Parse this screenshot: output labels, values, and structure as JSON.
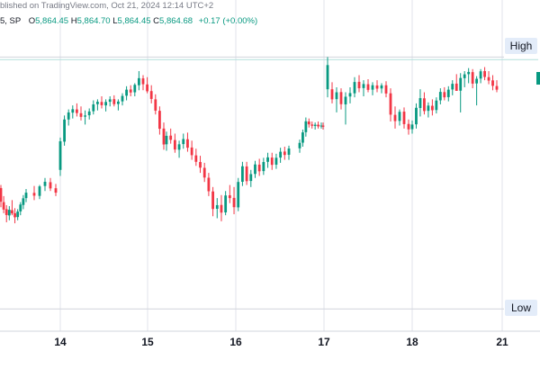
{
  "header": {
    "published": "blished on TradingView.com, Oct 21, 2024 12:14 UTC+2",
    "symbol": "5, SP",
    "open_label": "O",
    "open": "5,864.45",
    "high_label": "H",
    "high": "5,864.70",
    "low_label": "L",
    "low": "5,864.45",
    "close_label": "C",
    "close": "5,864.68",
    "change": "+0.17 (+0.00%)"
  },
  "levels": {
    "high_label": "High",
    "low_label": "Low"
  },
  "colors": {
    "up": "#089981",
    "down": "#f23645",
    "grid": "#e0e3eb",
    "level_line": "#b2dfdb",
    "text": "#131722"
  },
  "chart_data": {
    "type": "candlestick",
    "x_tick_labels": [
      "14",
      "15",
      "16",
      "17",
      "18",
      "21"
    ],
    "ylim": [
      5738,
      5880
    ],
    "levels": {
      "high": 5866,
      "low": 5741,
      "current": 5864.7
    },
    "candles": [
      [
        5801.0,
        5802.5,
        5791.5,
        5794.2
      ],
      [
        5794.0,
        5797.0,
        5788.5,
        5790.3
      ],
      [
        5790.5,
        5792.5,
        5784.0,
        5787.6
      ],
      [
        5787.4,
        5792.0,
        5785.0,
        5790.2
      ],
      [
        5790.0,
        5795.0,
        5787.5,
        5788.4
      ],
      [
        5788.5,
        5791.0,
        5783.5,
        5786.5
      ],
      [
        5786.6,
        5790.5,
        5785.0,
        5789.3
      ],
      [
        5789.4,
        5794.0,
        5787.5,
        5792.8
      ],
      [
        5792.6,
        5797.5,
        5790.5,
        5795.9
      ],
      [
        5796.0,
        5800.5,
        5794.0,
        5798.7
      ],
      [
        5798.6,
        5802.0,
        5795.0,
        5797.2
      ],
      [
        5797.1,
        5802.5,
        5795.5,
        5801.8
      ],
      [
        5802.0,
        5806.0,
        5799.5,
        5804.1
      ],
      [
        5803.9,
        5806.0,
        5799.5,
        5800.8
      ],
      [
        5800.9,
        5803.0,
        5797.0,
        5798.7
      ],
      [
        5810.0,
        5826.0,
        5807.0,
        5824.2
      ],
      [
        5824.0,
        5837.0,
        5822.0,
        5835.0
      ],
      [
        5835.0,
        5840.0,
        5832.0,
        5838.5
      ],
      [
        5838.4,
        5842.0,
        5835.5,
        5840.1
      ],
      [
        5840.0,
        5843.0,
        5836.5,
        5838.2
      ],
      [
        5838.1,
        5841.5,
        5834.5,
        5836.3
      ],
      [
        5836.4,
        5839.5,
        5832.5,
        5837.0
      ],
      [
        5837.1,
        5840.5,
        5835.0,
        5839.0
      ],
      [
        5839.1,
        5844.5,
        5837.5,
        5842.5
      ],
      [
        5842.6,
        5845.0,
        5839.5,
        5843.8
      ],
      [
        5843.7,
        5846.5,
        5840.5,
        5842.1
      ],
      [
        5842.0,
        5845.0,
        5839.0,
        5843.7
      ],
      [
        5843.8,
        5846.5,
        5841.5,
        5845.0
      ],
      [
        5845.1,
        5847.0,
        5841.5,
        5842.6
      ],
      [
        5842.7,
        5845.0,
        5839.5,
        5843.9
      ],
      [
        5844.0,
        5848.0,
        5842.0,
        5846.7
      ],
      [
        5846.8,
        5851.5,
        5844.5,
        5849.8
      ],
      [
        5849.9,
        5852.0,
        5846.5,
        5848.4
      ],
      [
        5848.5,
        5853.0,
        5846.5,
        5852.2
      ],
      [
        5852.0,
        5859.0,
        5849.5,
        5855.5
      ],
      [
        5855.4,
        5857.0,
        5849.5,
        5852.5
      ],
      [
        5852.4,
        5856.0,
        5848.0,
        5849.0
      ],
      [
        5849.1,
        5852.0,
        5843.0,
        5845.2
      ],
      [
        5845.0,
        5847.5,
        5837.5,
        5839.4
      ],
      [
        5839.3,
        5841.5,
        5827.5,
        5830.4
      ],
      [
        5830.5,
        5833.5,
        5820.0,
        5822.6
      ],
      [
        5822.7,
        5829.0,
        5819.5,
        5826.9
      ],
      [
        5827.0,
        5830.5,
        5823.0,
        5824.9
      ],
      [
        5824.8,
        5828.0,
        5818.5,
        5820.1
      ],
      [
        5820.0,
        5824.5,
        5816.0,
        5822.7
      ],
      [
        5822.8,
        5828.0,
        5820.5,
        5825.3
      ],
      [
        5825.2,
        5828.5,
        5819.0,
        5821.0
      ],
      [
        5821.1,
        5824.5,
        5815.0,
        5817.3
      ],
      [
        5817.2,
        5820.5,
        5812.0,
        5814.0
      ],
      [
        5813.9,
        5817.0,
        5808.5,
        5811.1
      ],
      [
        5811.0,
        5813.5,
        5804.0,
        5806.2
      ],
      [
        5806.1,
        5808.5,
        5797.0,
        5799.4
      ],
      [
        5799.3,
        5801.5,
        5787.0,
        5790.6
      ],
      [
        5790.7,
        5796.0,
        5786.0,
        5792.5
      ],
      [
        5792.6,
        5797.5,
        5784.5,
        5788.8
      ],
      [
        5788.9,
        5799.5,
        5787.5,
        5797.3
      ],
      [
        5797.4,
        5802.5,
        5793.5,
        5796.0
      ],
      [
        5796.1,
        5801.5,
        5788.0,
        5791.5
      ],
      [
        5791.4,
        5806.0,
        5789.5,
        5804.0
      ],
      [
        5804.1,
        5814.0,
        5802.0,
        5811.8
      ],
      [
        5811.7,
        5814.0,
        5802.5,
        5804.4
      ],
      [
        5804.5,
        5810.0,
        5801.5,
        5807.9
      ],
      [
        5808.0,
        5814.5,
        5806.0,
        5812.7
      ],
      [
        5812.6,
        5815.5,
        5807.0,
        5809.3
      ],
      [
        5809.4,
        5816.0,
        5807.5,
        5813.9
      ],
      [
        5814.0,
        5818.5,
        5811.0,
        5816.2
      ],
      [
        5816.1,
        5818.5,
        5810.0,
        5812.5
      ],
      [
        5812.6,
        5818.0,
        5810.5,
        5816.0
      ],
      [
        5816.1,
        5821.0,
        5813.5,
        5819.0
      ],
      [
        5819.1,
        5821.5,
        5815.0,
        5817.4
      ],
      [
        5817.5,
        5822.0,
        5815.0,
        5820.6
      ],
      [
        5820.7,
        5825.0,
        5818.5,
        5823.4
      ],
      [
        5823.5,
        5830.0,
        5821.5,
        5828.6
      ],
      [
        5828.7,
        5836.0,
        5826.5,
        5834.1
      ],
      [
        5834.0,
        5835.5,
        5831.0,
        5832.6
      ],
      [
        5832.5,
        5834.0,
        5830.5,
        5831.9
      ],
      [
        5831.8,
        5833.5,
        5830.0,
        5832.4
      ],
      [
        5832.4,
        5834.0,
        5830.5,
        5831.6
      ],
      [
        5831.7,
        5833.5,
        5830.5,
        5832.0
      ],
      [
        5832.0,
        5833.5,
        5830.0,
        5831.4
      ],
      [
        5850.0,
        5866.0,
        5846.0,
        5862.0
      ],
      [
        5850.0,
        5853.5,
        5843.0,
        5845.0
      ],
      [
        5845.1,
        5851.0,
        5838.5,
        5848.5
      ],
      [
        5848.6,
        5850.5,
        5840.0,
        5842.6
      ],
      [
        5842.5,
        5848.5,
        5832.5,
        5846.3
      ],
      [
        5846.4,
        5851.0,
        5843.0,
        5848.1
      ],
      [
        5848.0,
        5856.0,
        5846.0,
        5853.6
      ],
      [
        5853.7,
        5857.0,
        5848.5,
        5850.5
      ],
      [
        5850.6,
        5854.5,
        5846.5,
        5852.6
      ],
      [
        5852.5,
        5855.0,
        5848.5,
        5849.7
      ],
      [
        5849.8,
        5853.5,
        5847.0,
        5852.0
      ],
      [
        5851.9,
        5854.5,
        5848.5,
        5850.3
      ],
      [
        5850.4,
        5853.0,
        5848.0,
        5851.9
      ],
      [
        5852.0,
        5854.0,
        5846.0,
        5847.9
      ],
      [
        5848.0,
        5850.5,
        5834.0,
        5837.4
      ],
      [
        5837.3,
        5841.5,
        5830.5,
        5834.2
      ],
      [
        5834.3,
        5840.0,
        5832.0,
        5838.8
      ],
      [
        5838.9,
        5841.0,
        5830.5,
        5832.7
      ],
      [
        5832.8,
        5835.0,
        5827.5,
        5830.1
      ],
      [
        5830.2,
        5834.5,
        5828.0,
        5832.5
      ],
      [
        5832.6,
        5843.0,
        5830.5,
        5840.8
      ],
      [
        5840.7,
        5850.0,
        5836.5,
        5845.6
      ],
      [
        5845.5,
        5848.5,
        5837.5,
        5839.2
      ],
      [
        5839.3,
        5843.5,
        5836.0,
        5841.9
      ],
      [
        5841.8,
        5845.0,
        5837.0,
        5839.6
      ],
      [
        5839.7,
        5846.0,
        5838.0,
        5844.4
      ],
      [
        5844.5,
        5850.5,
        5842.5,
        5848.7
      ],
      [
        5848.6,
        5851.0,
        5844.5,
        5846.0
      ],
      [
        5846.1,
        5851.5,
        5844.0,
        5849.8
      ],
      [
        5849.9,
        5854.5,
        5847.0,
        5852.7
      ],
      [
        5852.8,
        5857.5,
        5850.5,
        5849.2
      ],
      [
        5849.3,
        5858.0,
        5838.5,
        5855.6
      ],
      [
        5855.5,
        5859.0,
        5851.0,
        5857.4
      ],
      [
        5857.5,
        5860.5,
        5853.0,
        5858.6
      ],
      [
        5858.5,
        5860.0,
        5850.5,
        5852.8
      ],
      [
        5852.9,
        5856.5,
        5842.0,
        5855.2
      ],
      [
        5855.3,
        5860.0,
        5853.0,
        5858.9
      ],
      [
        5859.0,
        5861.0,
        5854.5,
        5856.1
      ],
      [
        5856.0,
        5859.0,
        5852.5,
        5854.3
      ],
      [
        5854.4,
        5857.0,
        5849.5,
        5851.7
      ],
      [
        5851.6,
        5854.5,
        5848.5,
        5849.8
      ],
      [
        5849.9,
        5854.0,
        5848.0,
        5852.6
      ]
    ]
  }
}
